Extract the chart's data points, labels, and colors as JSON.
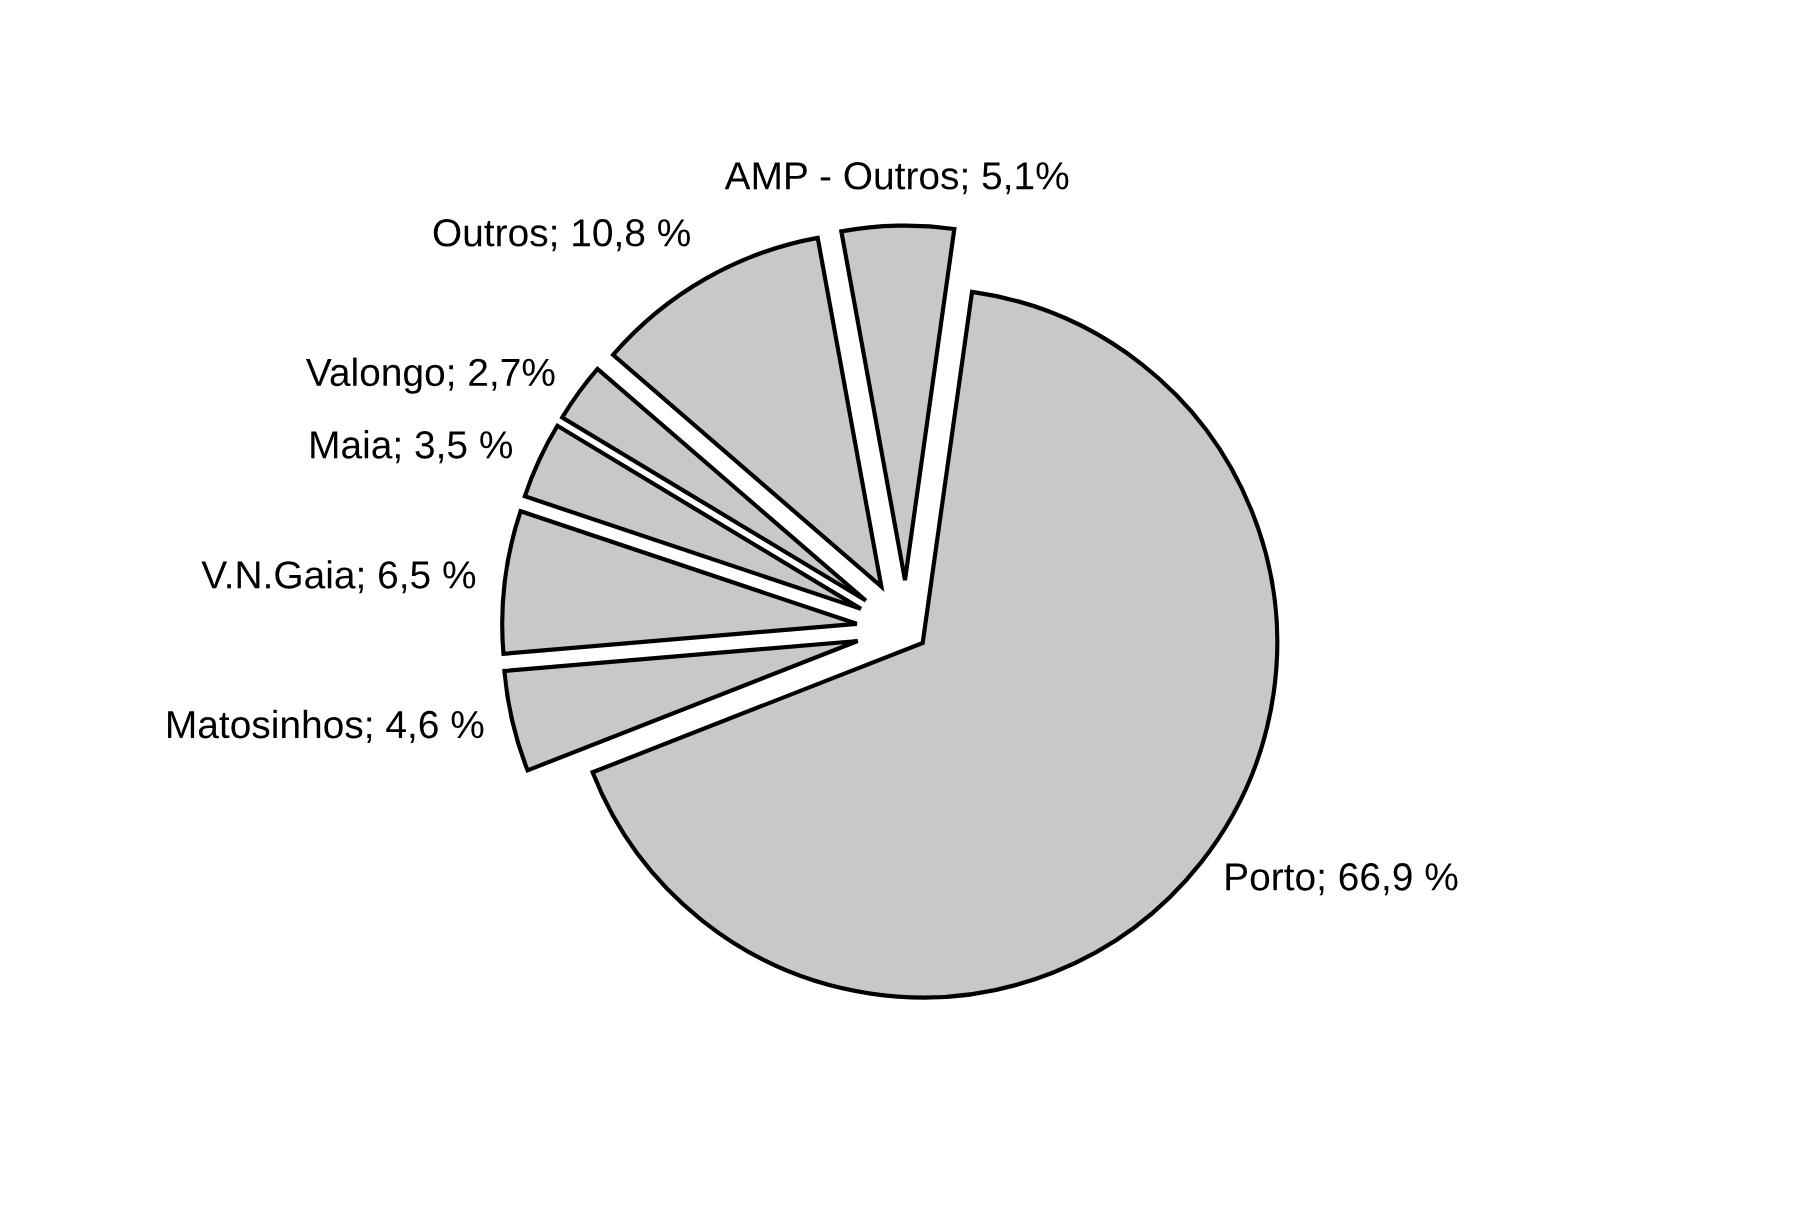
{
  "chart_data": {
    "type": "pie",
    "categories": [
      "Porto",
      "Matosinhos",
      "V.N.Gaia",
      "Maia",
      "Valongo",
      "Outros",
      "AMP - Outros"
    ],
    "values": [
      66.9,
      4.6,
      6.5,
      3.5,
      2.7,
      10.8,
      5.1
    ],
    "value_labels": [
      "66,9 %",
      "4,6 %",
      "6,5 %",
      "3,5 %",
      "2,7%",
      "10,8 %",
      "5,1%"
    ],
    "colors": [
      "#c8c8c8",
      "#c8c8c8",
      "#c8c8c8",
      "#c8c8c8",
      "#c8c8c8",
      "#c8c8c8",
      "#c8c8c8"
    ]
  }
}
